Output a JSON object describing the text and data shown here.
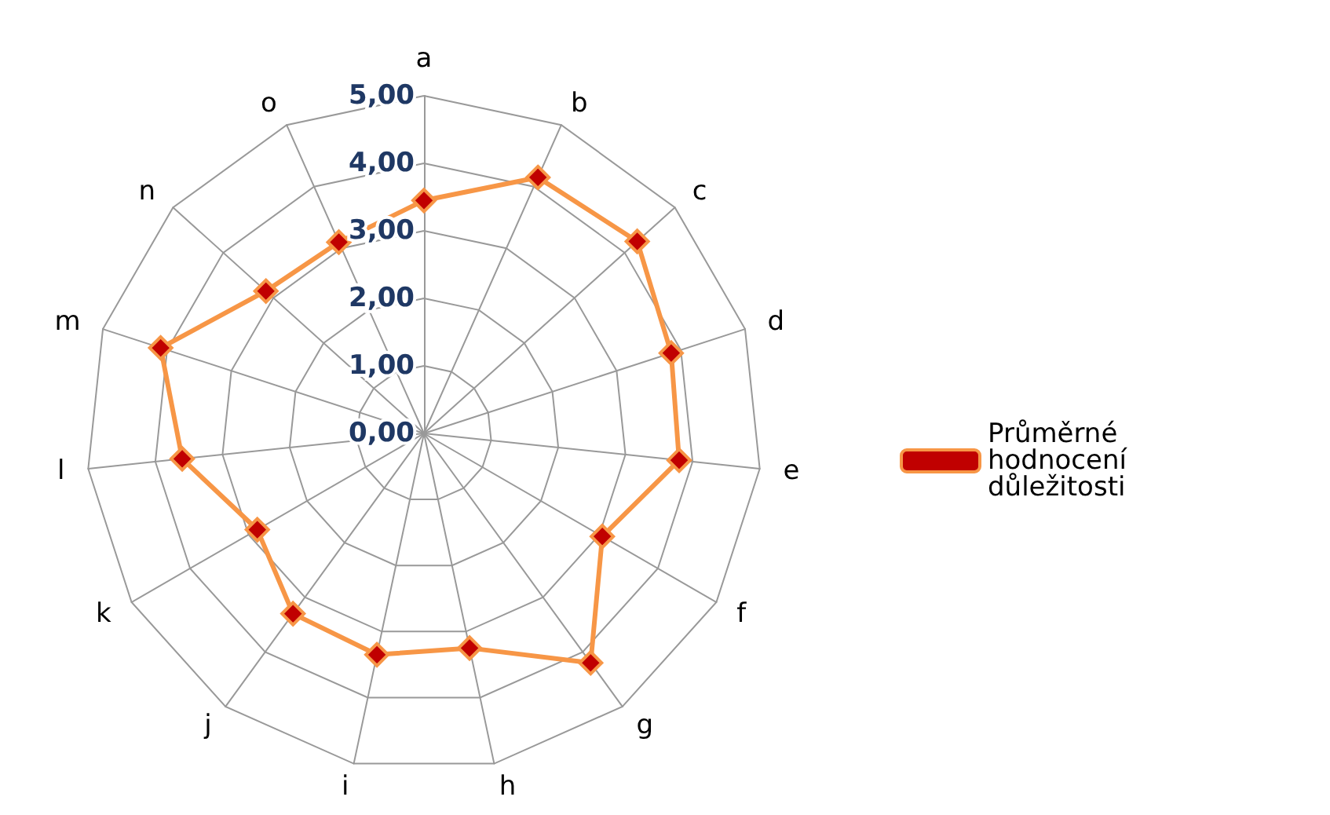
{
  "chart_data": {
    "type": "radar",
    "categories": [
      "a",
      "b",
      "c",
      "d",
      "e",
      "f",
      "g",
      "h",
      "i",
      "j",
      "k",
      "l",
      "m",
      "n",
      "o"
    ],
    "series": [
      {
        "name": "Průměrné hodnocení důležitosti",
        "color": "#f79646",
        "values": [
          3.45,
          4.15,
          4.25,
          3.85,
          3.8,
          3.05,
          4.2,
          3.25,
          3.35,
          3.3,
          2.85,
          3.6,
          4.1,
          3.15,
          3.1
        ]
      }
    ],
    "ylim": [
      0,
      5
    ],
    "yticks": [
      {
        "value": 0,
        "label": "0,00"
      },
      {
        "value": 1,
        "label": "1,00"
      },
      {
        "value": 2,
        "label": "2,00"
      },
      {
        "value": 3,
        "label": "3,00"
      },
      {
        "value": 4,
        "label": "4,00"
      },
      {
        "value": 5,
        "label": "5,00"
      }
    ],
    "grid": true,
    "legend": "right",
    "marker": "diamond",
    "line_style": "solid"
  }
}
